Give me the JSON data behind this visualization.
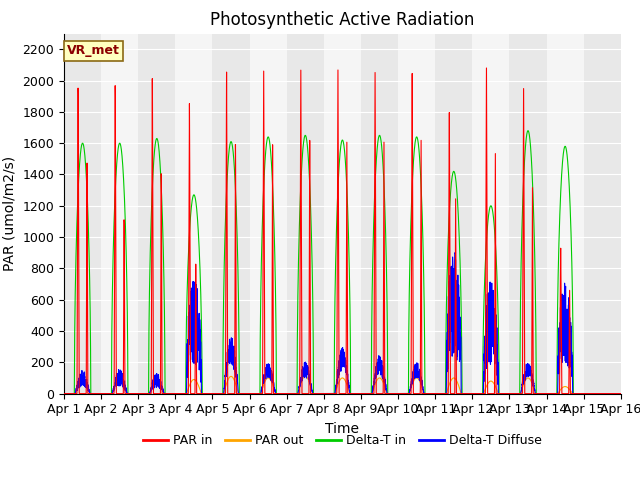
{
  "title": "Photosynthetic Active Radiation",
  "ylabel": "PAR (umol/m2/s)",
  "xlabel": "Time",
  "ylim": [
    0,
    2300
  ],
  "xlim": [
    0,
    15
  ],
  "yticks": [
    0,
    200,
    400,
    600,
    800,
    1000,
    1200,
    1400,
    1600,
    1800,
    2000,
    2200
  ],
  "xtick_labels": [
    "Apr 1",
    "Apr 2",
    "Apr 3",
    "Apr 4",
    "Apr 5",
    "Apr 6",
    "Apr 7",
    "Apr 8",
    "Apr 9",
    "Apr 10",
    "Apr 11",
    "Apr 12",
    "Apr 13",
    "Apr 14",
    "Apr 15",
    "Apr 16"
  ],
  "legend_labels": [
    "PAR in",
    "PAR out",
    "Delta-T in",
    "Delta-T Diffuse"
  ],
  "legend_colors": [
    "#ff0000",
    "#ffa500",
    "#00cc00",
    "#0000ff"
  ],
  "box_label": "VR_met",
  "box_facecolor": "#ffffc0",
  "box_edgecolor": "#8b6914",
  "band_colors": [
    "#e8e8e8",
    "#f5f5f5"
  ],
  "title_fontsize": 12,
  "axis_fontsize": 10,
  "tick_fontsize": 9
}
